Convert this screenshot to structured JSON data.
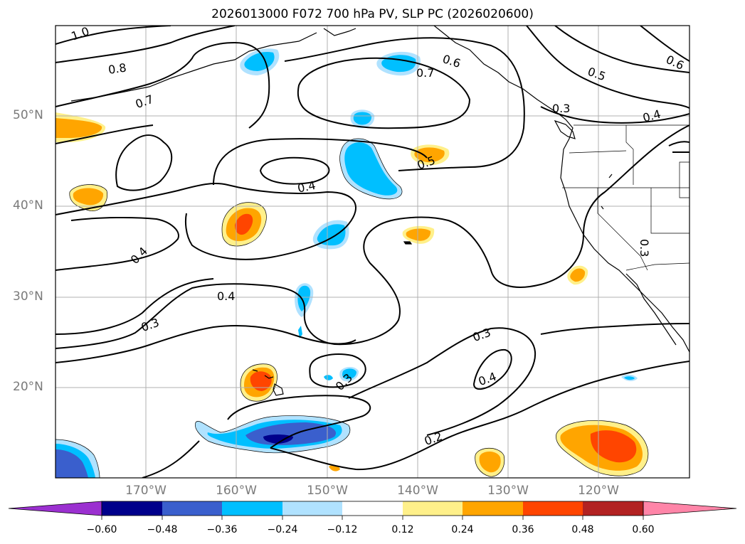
{
  "title": "2026013000 F072 700 hPa PV, SLP PC (2026020600)",
  "lat_labels": [
    "50°N",
    "40°N",
    "30°N",
    "20°N"
  ],
  "lon_labels": [
    "170°W",
    "160°W",
    "150°W",
    "140°W",
    "130°W",
    "120°W"
  ],
  "colorbar": {
    "ticks": [
      "−0.60",
      "−0.48",
      "−0.36",
      "−0.24",
      "−0.12",
      "0.12",
      "0.24",
      "0.36",
      "0.48",
      "0.60"
    ],
    "colors": [
      "#9b30d0",
      "#00008b",
      "#3a5fcd",
      "#00bfff",
      "#b0e2ff",
      "#ffffff",
      "#fff08a",
      "#ffa500",
      "#ff4500",
      "#b22222",
      "#ff85a8"
    ]
  },
  "contour_labels": [
    "1.0",
    "0.8",
    "0.7",
    "0.6",
    "0.7",
    "0.5",
    "0.6",
    "0.3",
    "0.4",
    "0.5",
    "0.4",
    "0.4",
    "0.4",
    "0.3",
    "0.3",
    "0.3",
    "0.4",
    "0.2",
    "0.3"
  ],
  "map_colors": {
    "grid": "#b0b0b0",
    "contour": "#000000",
    "coast": "#000000"
  }
}
